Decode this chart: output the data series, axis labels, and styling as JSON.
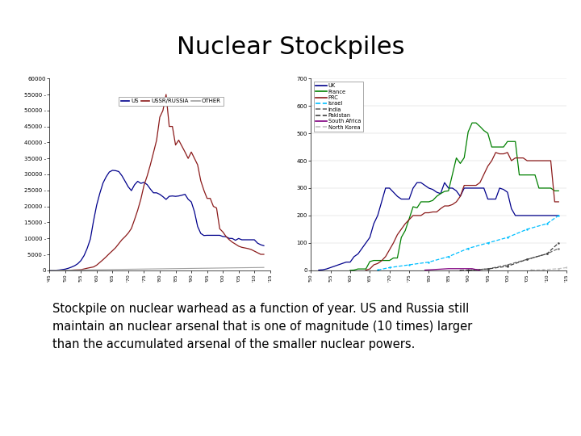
{
  "title": "Nuclear Stockpiles",
  "subtitle": "Stockpile on nuclear warhead as a function of year. US and Russia still\nmaintain an nuclear arsenal that is one of magnitude (10 times) larger\nthan the accumulated arsenal of the smaller nuclear powers.",
  "left_chart": {
    "xlim": [
      1945,
      2015
    ],
    "ylim": [
      0,
      60000
    ],
    "ytick_labels": [
      "0",
      "5000 -",
      "10000 -",
      "15000 -",
      "20000 -",
      "25000 -",
      "30000 -",
      "35000 -",
      "40000 -",
      "45000 -",
      "50000 -",
      "55000 -",
      "60000"
    ],
    "ytick_vals": [
      0,
      5000,
      10000,
      15000,
      20000,
      25000,
      30000,
      35000,
      40000,
      45000,
      50000,
      55000,
      60000
    ],
    "legend": [
      "US",
      "USSR/RUSSIA",
      "OTHER"
    ],
    "colors": [
      "#00008B",
      "#8B1A1A",
      "#A0A0A0"
    ],
    "us_years": [
      1945,
      1946,
      1947,
      1948,
      1949,
      1950,
      1951,
      1952,
      1953,
      1954,
      1955,
      1956,
      1957,
      1958,
      1959,
      1960,
      1961,
      1962,
      1963,
      1964,
      1965,
      1966,
      1967,
      1968,
      1969,
      1970,
      1971,
      1972,
      1973,
      1974,
      1975,
      1976,
      1977,
      1978,
      1979,
      1980,
      1981,
      1982,
      1983,
      1984,
      1985,
      1986,
      1987,
      1988,
      1989,
      1990,
      1991,
      1992,
      1993,
      1994,
      1995,
      1996,
      1997,
      1998,
      1999,
      2000,
      2001,
      2002,
      2003,
      2004,
      2005,
      2006,
      2007,
      2008,
      2009,
      2010,
      2011,
      2012,
      2013
    ],
    "us_values": [
      6,
      11,
      32,
      110,
      235,
      369,
      640,
      1005,
      1436,
      2063,
      3057,
      4618,
      6902,
      9822,
      15468,
      20434,
      24111,
      27297,
      29249,
      30751,
      31265,
      31175,
      30893,
      29584,
      27876,
      26119,
      24929,
      26750,
      27835,
      27190,
      27519,
      26800,
      25435,
      24243,
      24243,
      23764,
      23031,
      22177,
      23154,
      23254,
      23135,
      23254,
      23490,
      23776,
      22217,
      21392,
      18306,
      13731,
      11536,
      10886,
      10953,
      10953,
      10953,
      10953,
      10953,
      10577,
      10500,
      10000,
      9960,
      9400,
      9960,
      9552,
      9552,
      9552,
      9552,
      9552,
      8500,
      8000,
      7700
    ],
    "ussr_years": [
      1949,
      1950,
      1951,
      1952,
      1953,
      1954,
      1955,
      1956,
      1957,
      1958,
      1959,
      1960,
      1961,
      1962,
      1963,
      1964,
      1965,
      1966,
      1967,
      1968,
      1969,
      1970,
      1971,
      1972,
      1973,
      1974,
      1975,
      1976,
      1977,
      1978,
      1979,
      1980,
      1981,
      1982,
      1983,
      1984,
      1985,
      1986,
      1987,
      1988,
      1989,
      1990,
      1991,
      1992,
      1993,
      1994,
      1995,
      1996,
      1997,
      1998,
      1999,
      2000,
      2001,
      2002,
      2003,
      2004,
      2005,
      2006,
      2007,
      2008,
      2009,
      2010,
      2011,
      2012,
      2013
    ],
    "ussr_values": [
      1,
      5,
      25,
      50,
      120,
      150,
      200,
      426,
      660,
      869,
      1060,
      1627,
      2471,
      3322,
      4238,
      5221,
      6129,
      7089,
      8339,
      9574,
      10538,
      11643,
      13092,
      15862,
      18809,
      22270,
      26566,
      29500,
      32953,
      36800,
      40723,
      47890,
      50000,
      55000,
      45000,
      45000,
      39197,
      40723,
      38859,
      37000,
      35000,
      37000,
      35000,
      33000,
      28000,
      25000,
      22500,
      22500,
      20000,
      19500,
      13000,
      12000,
      10600,
      9600,
      8800,
      8200,
      7560,
      7200,
      7000,
      6800,
      6500,
      6000,
      5500,
      5000,
      5000
    ],
    "other_years": [
      1945,
      2013
    ],
    "other_values": [
      0,
      900
    ]
  },
  "right_chart": {
    "xlim": [
      1950,
      2015
    ],
    "ylim": [
      0,
      700
    ],
    "ytick_vals": [
      0,
      100,
      200,
      300,
      400,
      500,
      600,
      700
    ],
    "legend": [
      "UK",
      "France",
      "PRC",
      "Israel",
      "India",
      "Pakistan",
      "South Africa",
      "North Korea"
    ],
    "colors": [
      "#00008B",
      "#008000",
      "#8B1A1A",
      "#00BFFF",
      "#696969",
      "#404040",
      "#800080",
      "#C0C0C0"
    ],
    "styles": [
      "-",
      "-",
      "-",
      "--",
      "--",
      "--",
      "-",
      "--"
    ],
    "uk_years": [
      1952,
      1953,
      1954,
      1955,
      1956,
      1957,
      1958,
      1959,
      1960,
      1961,
      1962,
      1963,
      1964,
      1965,
      1966,
      1967,
      1968,
      1969,
      1970,
      1971,
      1972,
      1973,
      1974,
      1975,
      1976,
      1977,
      1978,
      1979,
      1980,
      1981,
      1982,
      1983,
      1984,
      1985,
      1986,
      1987,
      1988,
      1989,
      1990,
      1991,
      1992,
      1993,
      1994,
      1995,
      1996,
      1997,
      1998,
      1999,
      2000,
      2001,
      2002,
      2003,
      2004,
      2005,
      2006,
      2007,
      2008,
      2009,
      2010,
      2011,
      2012,
      2013
    ],
    "uk_values": [
      1,
      2,
      5,
      10,
      15,
      20,
      25,
      30,
      30,
      50,
      60,
      80,
      100,
      120,
      170,
      200,
      250,
      300,
      300,
      285,
      270,
      260,
      260,
      260,
      300,
      320,
      320,
      310,
      300,
      295,
      285,
      280,
      320,
      300,
      300,
      290,
      270,
      300,
      300,
      300,
      300,
      300,
      300,
      260,
      260,
      260,
      300,
      295,
      285,
      225,
      200,
      200,
      200,
      200,
      200,
      200,
      200,
      200,
      200,
      200,
      200,
      200
    ],
    "france_years": [
      1960,
      1961,
      1962,
      1963,
      1964,
      1965,
      1966,
      1967,
      1968,
      1969,
      1970,
      1971,
      1972,
      1973,
      1974,
      1975,
      1976,
      1977,
      1978,
      1979,
      1980,
      1981,
      1982,
      1983,
      1984,
      1985,
      1986,
      1987,
      1988,
      1989,
      1990,
      1991,
      1992,
      1993,
      1994,
      1995,
      1996,
      1997,
      1998,
      1999,
      2000,
      2001,
      2002,
      2003,
      2004,
      2005,
      2006,
      2007,
      2008,
      2009,
      2010,
      2011,
      2012,
      2013
    ],
    "france_values": [
      0,
      1,
      5,
      5,
      5,
      32,
      36,
      36,
      36,
      36,
      36,
      45,
      45,
      120,
      145,
      188,
      232,
      228,
      250,
      250,
      250,
      255,
      270,
      280,
      288,
      290,
      350,
      410,
      390,
      411,
      505,
      538,
      538,
      525,
      510,
      500,
      450,
      450,
      450,
      450,
      470,
      470,
      470,
      348,
      348,
      348,
      348,
      348,
      300,
      300,
      300,
      300,
      290,
      290
    ],
    "prc_years": [
      1964,
      1965,
      1966,
      1967,
      1968,
      1969,
      1970,
      1971,
      1972,
      1973,
      1974,
      1975,
      1976,
      1977,
      1978,
      1979,
      1980,
      1981,
      1982,
      1983,
      1984,
      1985,
      1986,
      1987,
      1988,
      1989,
      1990,
      1991,
      1992,
      1993,
      1994,
      1995,
      1996,
      1997,
      1998,
      1999,
      2000,
      2001,
      2002,
      2003,
      2004,
      2005,
      2006,
      2007,
      2008,
      2009,
      2010,
      2011,
      2012,
      2013
    ],
    "prc_values": [
      1,
      5,
      20,
      25,
      35,
      50,
      75,
      100,
      130,
      150,
      170,
      185,
      200,
      200,
      200,
      210,
      210,
      213,
      213,
      225,
      235,
      235,
      240,
      250,
      270,
      310,
      310,
      310,
      310,
      320,
      350,
      380,
      400,
      430,
      425,
      425,
      430,
      400,
      410,
      410,
      410,
      400,
      400,
      400,
      400,
      400,
      400,
      400,
      250,
      250
    ],
    "israel_years": [
      1967,
      1970,
      1975,
      1980,
      1985,
      1990,
      1995,
      2000,
      2005,
      2010,
      2013
    ],
    "israel_values": [
      1,
      10,
      20,
      30,
      50,
      80,
      100,
      120,
      150,
      170,
      200
    ],
    "india_years": [
      1988,
      1990,
      1995,
      2000,
      2005,
      2010,
      2013
    ],
    "india_values": [
      0,
      1,
      5,
      20,
      40,
      60,
      80
    ],
    "pakistan_years": [
      1990,
      1995,
      2000,
      2005,
      2010,
      2013
    ],
    "pakistan_values": [
      0,
      5,
      15,
      40,
      60,
      100
    ],
    "southafrica_years": [
      1979,
      1985,
      1991,
      1993
    ],
    "southafrica_values": [
      1,
      6,
      6,
      0
    ],
    "northkorea_years": [
      2006,
      2009,
      2013,
      2015
    ],
    "northkorea_values": [
      1,
      2,
      6,
      10
    ]
  },
  "background_color": "#FFFFFF",
  "title_fontsize": 22,
  "subtitle_fontsize": 10.5
}
